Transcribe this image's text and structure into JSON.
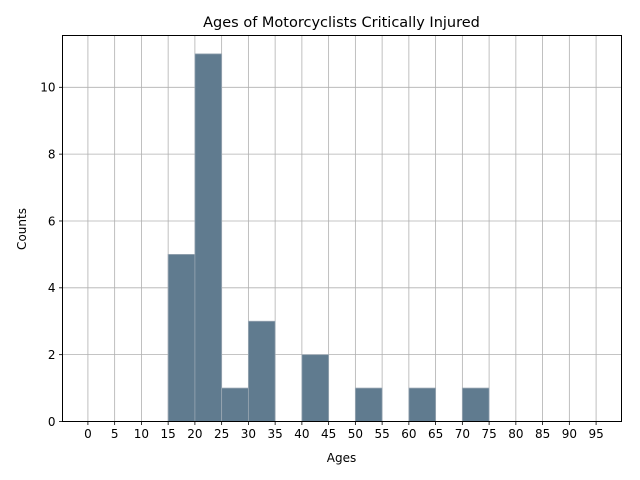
{
  "chart_data": {
    "type": "bar",
    "title": "Ages of Motorcyclists Critically Injured",
    "xlabel": "Ages",
    "ylabel": "Counts",
    "grid": true,
    "bin_width": 5,
    "bins": [
      {
        "start": 15,
        "end": 20,
        "count": 5
      },
      {
        "start": 20,
        "end": 25,
        "count": 11
      },
      {
        "start": 25,
        "end": 30,
        "count": 1
      },
      {
        "start": 30,
        "end": 35,
        "count": 3
      },
      {
        "start": 40,
        "end": 45,
        "count": 2
      },
      {
        "start": 50,
        "end": 55,
        "count": 1
      },
      {
        "start": 60,
        "end": 65,
        "count": 1
      },
      {
        "start": 70,
        "end": 75,
        "count": 1
      }
    ],
    "xticks": [
      "0",
      "5",
      "10",
      "15",
      "20",
      "25",
      "30",
      "35",
      "40",
      "45",
      "50",
      "55",
      "60",
      "65",
      "70",
      "75",
      "80",
      "85",
      "90",
      "95"
    ],
    "yticks": [
      "0",
      "2",
      "4",
      "6",
      "8",
      "10"
    ],
    "xlim": [
      -4.75,
      99.75
    ],
    "ylim": [
      0,
      11.55
    ],
    "bar_color": "#607b8f",
    "bar_edge_color": "#9aa7b3",
    "grid_color": "#b0b0b0"
  }
}
